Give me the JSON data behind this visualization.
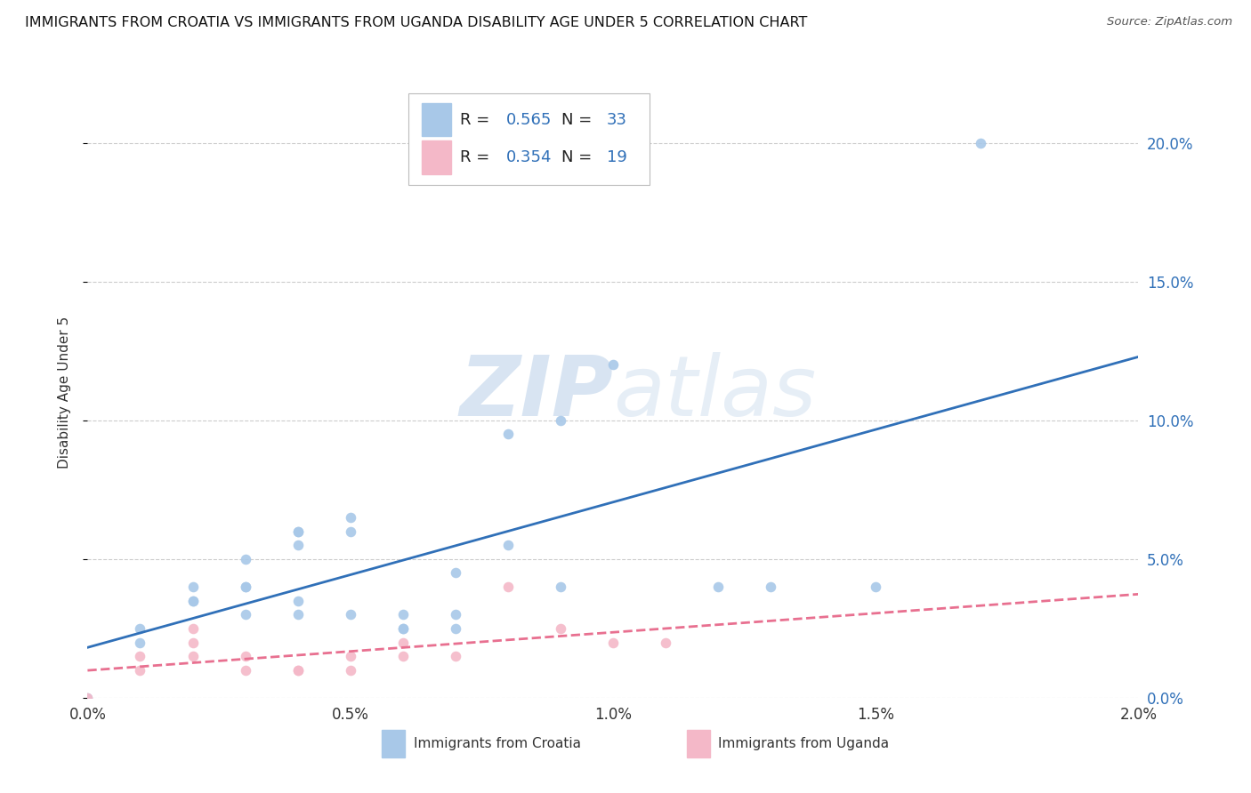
{
  "title": "IMMIGRANTS FROM CROATIA VS IMMIGRANTS FROM UGANDA DISABILITY AGE UNDER 5 CORRELATION CHART",
  "source": "Source: ZipAtlas.com",
  "ylabel": "Disability Age Under 5",
  "r_croatia": "0.565",
  "n_croatia": "33",
  "r_uganda": "0.354",
  "n_uganda": "19",
  "blue_color": "#a8c8e8",
  "pink_color": "#f4b8c8",
  "blue_line_color": "#3070b8",
  "pink_line_color": "#e87090",
  "blue_text_color": "#3070b8",
  "pink_text_color": "#e87090",
  "watermark_color": "#ccdff0",
  "scatter_croatia_x": [
    0.0,
    0.001,
    0.001,
    0.002,
    0.002,
    0.002,
    0.003,
    0.003,
    0.003,
    0.003,
    0.004,
    0.004,
    0.004,
    0.004,
    0.004,
    0.005,
    0.005,
    0.005,
    0.006,
    0.006,
    0.006,
    0.007,
    0.007,
    0.007,
    0.008,
    0.008,
    0.009,
    0.009,
    0.01,
    0.012,
    0.013,
    0.015,
    0.017
  ],
  "scatter_croatia_y": [
    0.0,
    0.02,
    0.025,
    0.035,
    0.04,
    0.035,
    0.04,
    0.04,
    0.05,
    0.03,
    0.06,
    0.06,
    0.055,
    0.03,
    0.035,
    0.06,
    0.065,
    0.03,
    0.03,
    0.025,
    0.025,
    0.045,
    0.03,
    0.025,
    0.055,
    0.095,
    0.1,
    0.04,
    0.12,
    0.04,
    0.04,
    0.04,
    0.2
  ],
  "scatter_uganda_x": [
    0.0,
    0.001,
    0.001,
    0.002,
    0.002,
    0.002,
    0.003,
    0.003,
    0.004,
    0.004,
    0.005,
    0.005,
    0.006,
    0.006,
    0.007,
    0.008,
    0.009,
    0.01,
    0.011
  ],
  "scatter_uganda_y": [
    0.0,
    0.015,
    0.01,
    0.025,
    0.015,
    0.02,
    0.015,
    0.01,
    0.01,
    0.01,
    0.015,
    0.01,
    0.02,
    0.015,
    0.015,
    0.04,
    0.025,
    0.02,
    0.02
  ],
  "xmin": 0.0,
  "xmax": 0.02,
  "ymin": 0.0,
  "ymax": 0.22,
  "ytick_max": 0.2,
  "title_fontsize": 11.5,
  "axis_label_fontsize": 11,
  "tick_fontsize": 12,
  "legend_fontsize": 13
}
